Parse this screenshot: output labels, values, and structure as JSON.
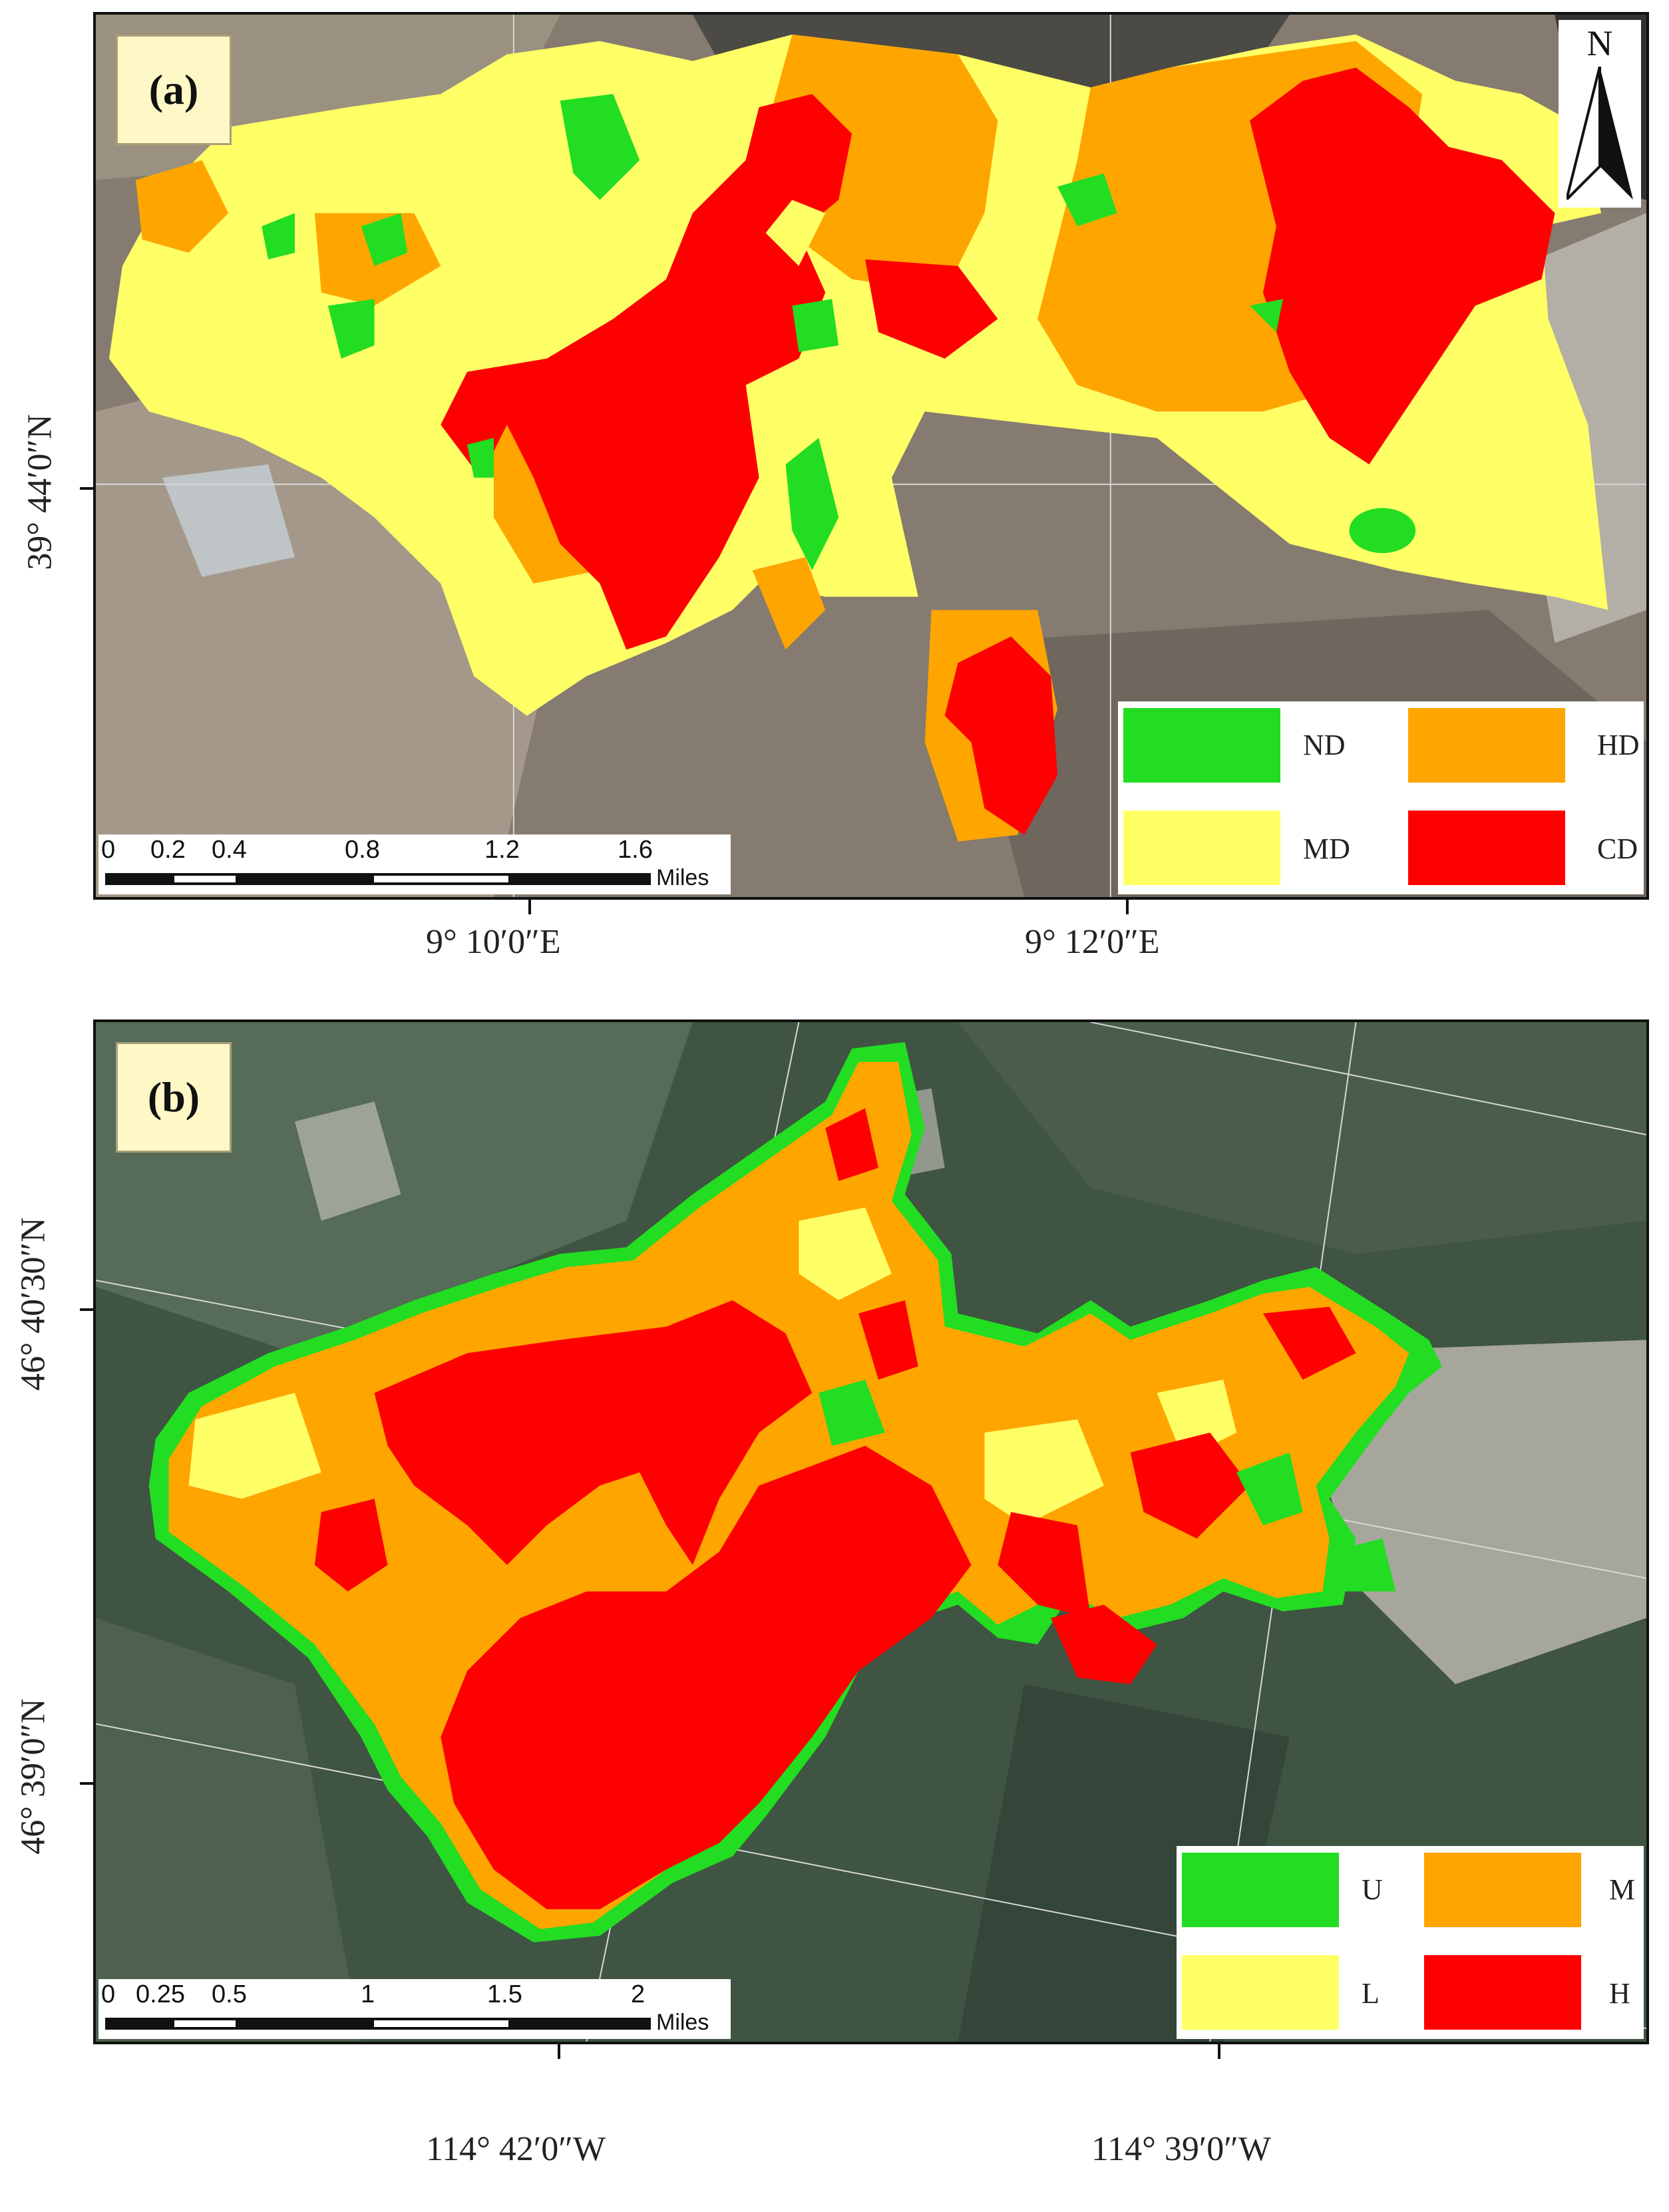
{
  "panels": [
    {
      "label": "(a)",
      "north_letter": "N",
      "legend": [
        {
          "key": "ND",
          "color": "#22dd22"
        },
        {
          "key": "HD",
          "color": "#ffa500"
        },
        {
          "key": "MD",
          "color": "#ffff66"
        },
        {
          "key": "CD",
          "color": "#ff0000"
        }
      ],
      "scalebar": {
        "ticks": [
          "0",
          "0.2",
          "0.4",
          "0.8",
          "1.2",
          "1.6"
        ],
        "unit": "Miles"
      },
      "lat_label": "39° 44′0″N",
      "lon_labels": [
        "9° 10′0″E",
        "9° 12′0″E"
      ]
    },
    {
      "label": "(b)",
      "legend": [
        {
          "key": "U",
          "color": "#22dd22"
        },
        {
          "key": "M",
          "color": "#ffa500"
        },
        {
          "key": "L",
          "color": "#ffff66"
        },
        {
          "key": "H",
          "color": "#ff0000"
        }
      ],
      "scalebar": {
        "ticks": [
          "0",
          "0.25",
          "0.5",
          "1",
          "1.5",
          "2"
        ],
        "unit": "Miles"
      },
      "lat_labels": [
        "46° 40′30″N",
        "46° 39′0″N"
      ],
      "lon_labels": [
        "114° 42′0″W",
        "114° 39′0″W"
      ]
    }
  ]
}
